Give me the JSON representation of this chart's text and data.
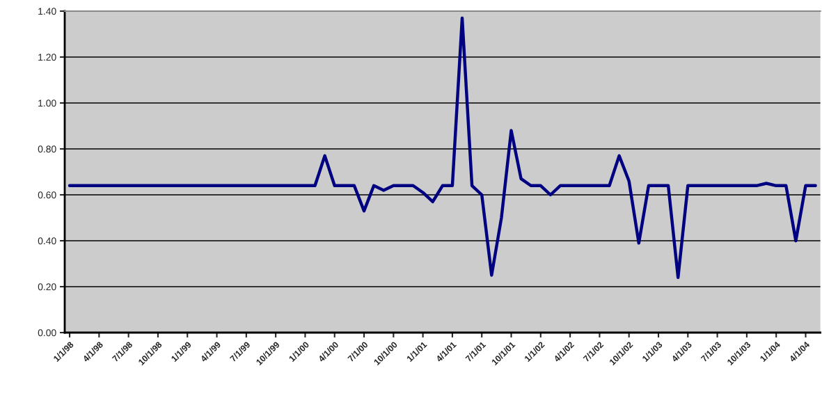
{
  "chart_data": {
    "type": "line",
    "categories": [
      "1/1/98",
      null,
      null,
      "4/1/98",
      null,
      null,
      "7/1/98",
      null,
      null,
      "10/1/98",
      null,
      null,
      "1/1/99",
      null,
      null,
      "4/1/99",
      null,
      null,
      "7/1/99",
      null,
      null,
      "10/1/99",
      null,
      null,
      "1/1/00",
      null,
      null,
      "4/1/00",
      null,
      null,
      "7/1/00",
      null,
      null,
      "10/1/00",
      null,
      null,
      "1/1/01",
      null,
      null,
      "4/1/01",
      null,
      null,
      "7/1/01",
      null,
      null,
      "10/1/01",
      null,
      null,
      "1/1/02",
      null,
      null,
      "4/1/02",
      null,
      null,
      "7/1/02",
      null,
      null,
      "10/1/02",
      null,
      null,
      "1/1/03",
      null,
      null,
      "4/1/03",
      null,
      null,
      "7/1/03",
      null,
      null,
      "10/1/03",
      null,
      null,
      "1/1/04",
      null,
      null,
      "4/1/04",
      null
    ],
    "series": [
      {
        "color": "#000080",
        "values": [
          0.64,
          0.64,
          0.64,
          0.64,
          0.64,
          0.64,
          0.64,
          0.64,
          0.64,
          0.64,
          0.64,
          0.64,
          0.64,
          0.64,
          0.64,
          0.64,
          0.64,
          0.64,
          0.64,
          0.64,
          0.64,
          0.64,
          0.64,
          0.64,
          0.64,
          0.64,
          0.77,
          0.64,
          0.64,
          0.64,
          0.53,
          0.64,
          0.62,
          0.64,
          0.64,
          0.64,
          0.61,
          0.57,
          0.64,
          0.64,
          1.37,
          0.64,
          0.6,
          0.25,
          0.5,
          0.88,
          0.67,
          0.64,
          0.64,
          0.6,
          0.64,
          0.64,
          0.64,
          0.64,
          0.64,
          0.64,
          0.77,
          0.66,
          0.39,
          0.64,
          0.64,
          0.64,
          0.24,
          0.64,
          0.64,
          0.64,
          0.64,
          0.64,
          0.64,
          0.64,
          0.64,
          0.65,
          0.64,
          0.64,
          0.4,
          0.64,
          0.64
        ]
      }
    ],
    "ylim": [
      0,
      1.4
    ],
    "yticks": [
      {
        "value": 0,
        "label": "0.00"
      },
      {
        "value": 0.2,
        "label": "0.20"
      },
      {
        "value": 0.4,
        "label": "0.40"
      },
      {
        "value": 0.6,
        "label": "0.60"
      },
      {
        "value": 0.8,
        "label": "0.80"
      },
      {
        "value": 1.0,
        "label": "1.00"
      },
      {
        "value": 1.2,
        "label": "1.20"
      },
      {
        "value": 1.4,
        "label": "1.40"
      }
    ],
    "grid": "y",
    "marker": "none",
    "line_style": "solid",
    "legend": false
  }
}
